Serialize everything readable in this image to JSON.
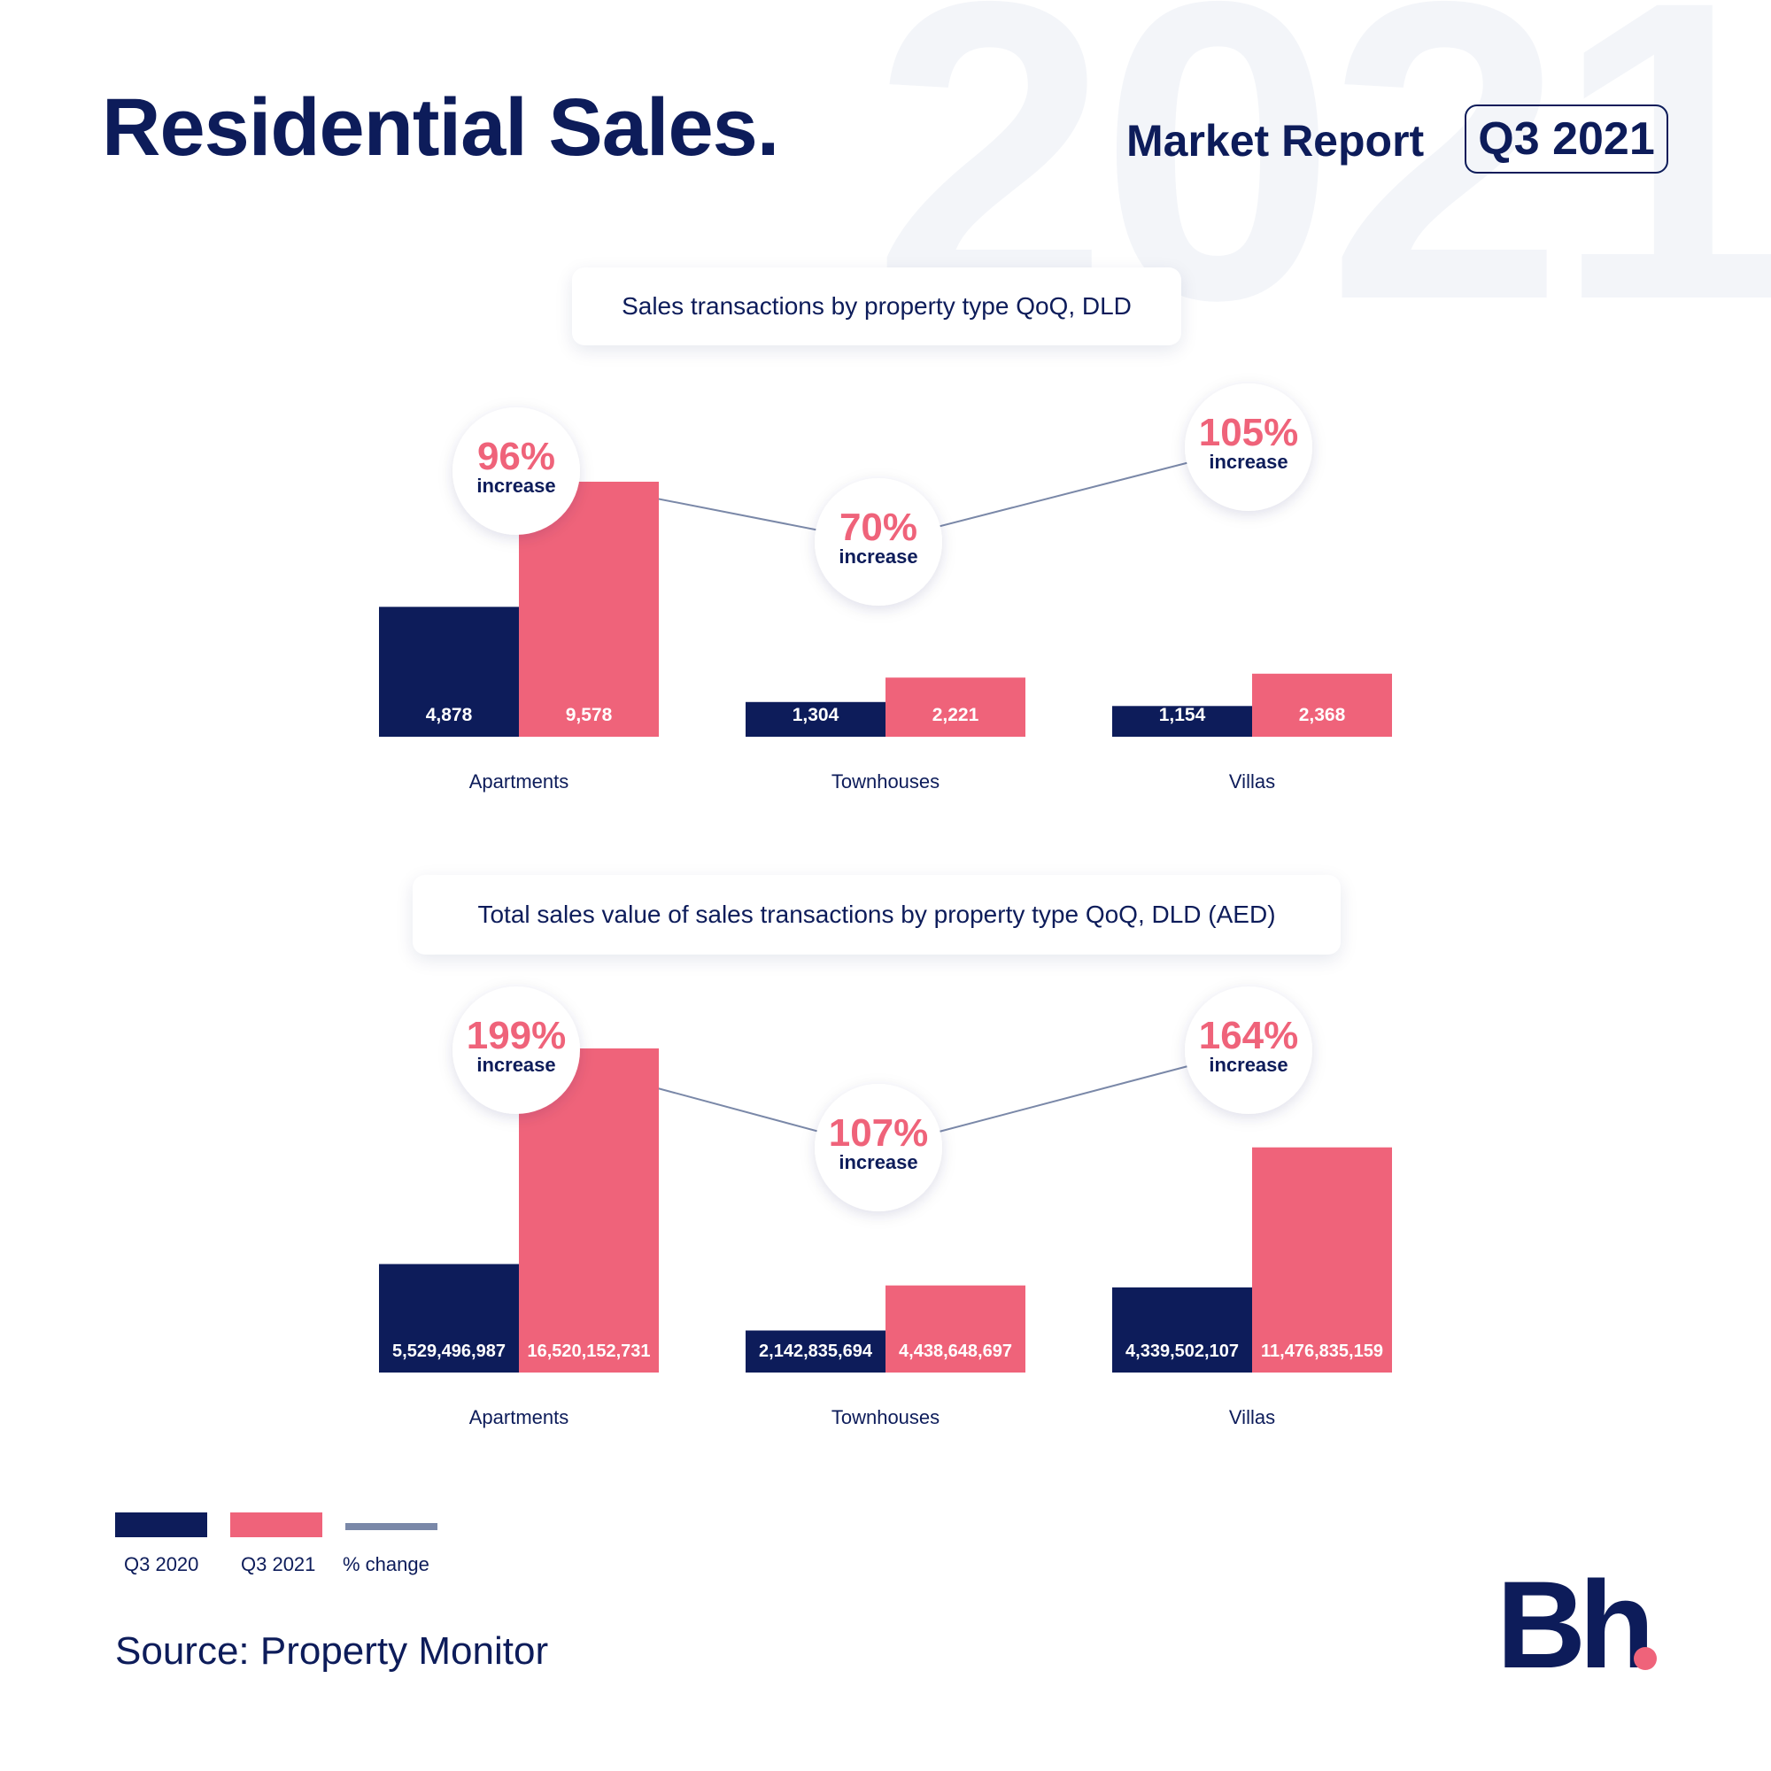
{
  "header": {
    "background_year": "2021",
    "title": "Residential Sales.",
    "report_label": "Market Report",
    "quarter_badge": "Q3 2021"
  },
  "colors": {
    "navy": "#0d1c5a",
    "pink": "#ef637a",
    "line": "#7a88a8"
  },
  "chart_data": [
    {
      "type": "bar",
      "title": "Sales transactions by property type QoQ, DLD",
      "categories": [
        "Apartments",
        "Townhouses",
        "Villas"
      ],
      "series": [
        {
          "name": "Q3 2020",
          "values": [
            4878,
            1304,
            1154
          ],
          "labels": [
            "4,878",
            "1,304",
            "1,154"
          ]
        },
        {
          "name": "Q3 2021",
          "values": [
            9578,
            2221,
            2368
          ],
          "labels": [
            "9,578",
            "2,221",
            "2,368"
          ]
        }
      ],
      "change": {
        "name": "% change",
        "values": [
          96,
          70,
          105
        ],
        "labels": [
          "96%",
          "70%",
          "105%"
        ],
        "caption": "increase"
      },
      "ylim": [
        0,
        9578
      ]
    },
    {
      "type": "bar",
      "title": "Total sales value of sales transactions by property type QoQ, DLD (AED)",
      "categories": [
        "Apartments",
        "Townhouses",
        "Villas"
      ],
      "series": [
        {
          "name": "Q3 2020",
          "values": [
            5529496987,
            2142835694,
            4339502107
          ],
          "labels": [
            "5,529,496,987",
            "2,142,835,694",
            "4,339,502,107"
          ]
        },
        {
          "name": "Q3 2021",
          "values": [
            16520152731,
            4438648697,
            11476835159
          ],
          "labels": [
            "16,520,152,731",
            "4,438,648,697",
            "11,476,835,159"
          ]
        }
      ],
      "change": {
        "name": "% change",
        "values": [
          199,
          107,
          164
        ],
        "labels": [
          "199%",
          "107%",
          "164%"
        ],
        "caption": "increase"
      },
      "ylim": [
        0,
        16520152731
      ]
    }
  ],
  "legend": [
    {
      "label": "Q3 2020",
      "color": "#0d1c5a"
    },
    {
      "label": "Q3 2021",
      "color": "#ef637a"
    },
    {
      "label": "% change",
      "color": "#7a88a8"
    }
  ],
  "source": "Source: Property Monitor",
  "logo": {
    "text": "Bh",
    "dot_color": "#ef637a"
  }
}
